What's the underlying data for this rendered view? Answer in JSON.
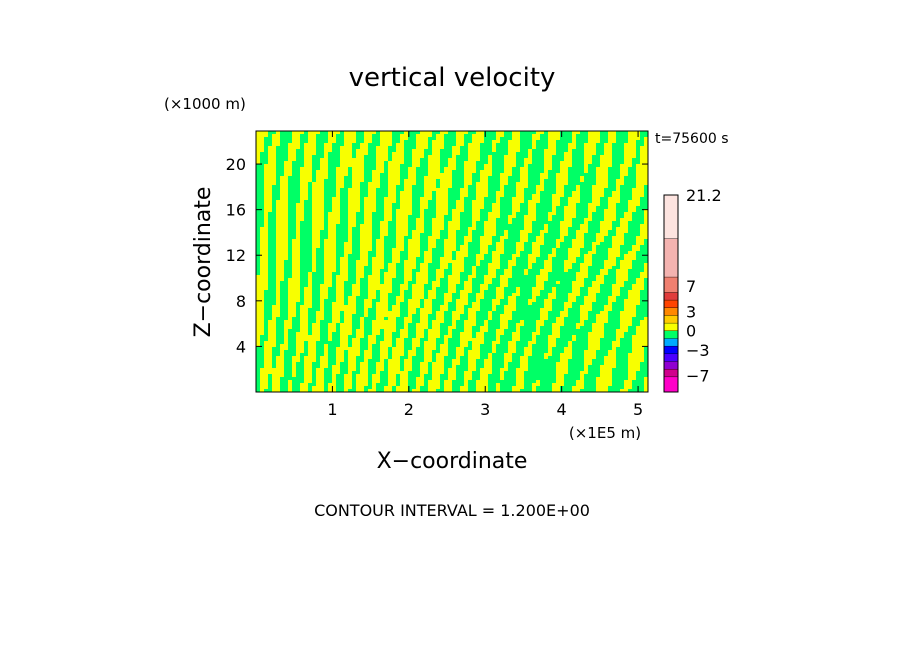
{
  "chart_data": {
    "type": "heatmap",
    "title": "vertical velocity",
    "xlabel": "X−coordinate",
    "ylabel": "Z−coordinate",
    "x_unit": "(×1E5 m)",
    "y_unit": "(×1000 m)",
    "time_label": "t=75600 s",
    "footer": "CONTOUR INTERVAL = 1.200E+00",
    "xlim": [
      0,
      5.13
    ],
    "ylim": [
      0,
      22.9
    ],
    "x_ticks": [
      1,
      2,
      3,
      4,
      5
    ],
    "y_ticks": [
      4,
      8,
      12,
      16,
      20
    ],
    "x_tick_labels": [
      "1",
      "2",
      "3",
      "4",
      "5"
    ],
    "y_tick_labels": [
      "4",
      "8",
      "12",
      "16",
      "20"
    ],
    "colors": {
      "positive_small": "#f8ff00",
      "negative_small": "#00ff66",
      "frame": "#000000"
    },
    "colorbar": {
      "range": [
        -9.6,
        21.2
      ],
      "levels": [
        {
          "from": -9.6,
          "to": -7.2,
          "color": "#ff00c8"
        },
        {
          "from": -7.2,
          "to": -6.0,
          "color": "#d0008c"
        },
        {
          "from": -6.0,
          "to": -4.8,
          "color": "#9000d0"
        },
        {
          "from": -4.8,
          "to": -3.6,
          "color": "#4a00ff"
        },
        {
          "from": -3.6,
          "to": -2.4,
          "color": "#0000ff"
        },
        {
          "from": -2.4,
          "to": -1.2,
          "color": "#00aaff"
        },
        {
          "from": -1.2,
          "to": 0.0,
          "color": "#00ff66"
        },
        {
          "from": 0.0,
          "to": 1.2,
          "color": "#f8ff00"
        },
        {
          "from": 1.2,
          "to": 2.4,
          "color": "#ffcc00"
        },
        {
          "from": 2.4,
          "to": 3.6,
          "color": "#ff8800"
        },
        {
          "from": 3.6,
          "to": 4.8,
          "color": "#ff4400"
        },
        {
          "from": 4.8,
          "to": 6.0,
          "color": "#e03c3c"
        },
        {
          "from": 6.0,
          "to": 8.4,
          "color": "#f08070"
        },
        {
          "from": 8.4,
          "to": 14.4,
          "color": "#f4b3b0"
        },
        {
          "from": 14.4,
          "to": 21.2,
          "color": "#fde4e0"
        }
      ],
      "labels": [
        {
          "value": 21.2,
          "text": "21.2"
        },
        {
          "value": 7.0,
          "text": "7"
        },
        {
          "value": 3.0,
          "text": "3"
        },
        {
          "value": 0.0,
          "text": "0"
        },
        {
          "value": -3.0,
          "text": "−3"
        },
        {
          "value": -7.0,
          "text": "−7"
        }
      ]
    }
  }
}
